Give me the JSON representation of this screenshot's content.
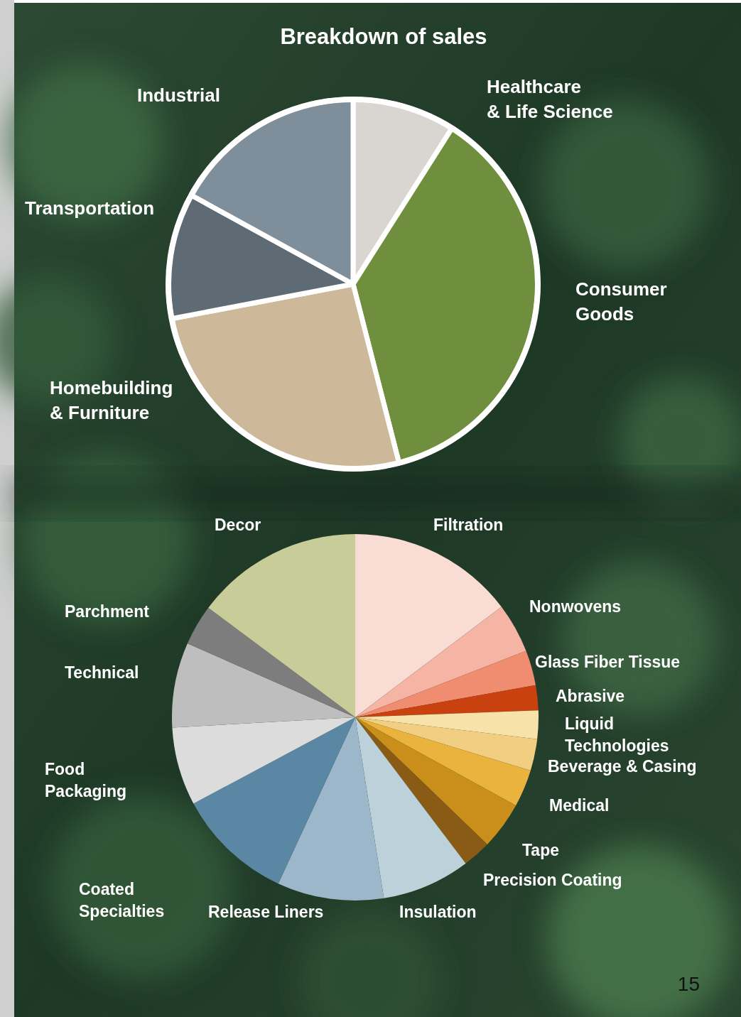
{
  "page": "15",
  "chart_data": [
    {
      "type": "pie",
      "title": "Breakdown of sales",
      "categories": [
        "Healthcare & Life Science",
        "Consumer Goods",
        "Homebuilding & Furniture",
        "Transportation",
        "Industrial"
      ],
      "values": [
        9,
        37,
        26,
        11,
        17
      ],
      "colors": [
        "#d9d6d2",
        "#6f8f3e",
        "#cdb99a",
        "#5e6a74",
        "#7f8e9b"
      ]
    },
    {
      "type": "pie",
      "categories": [
        "Filtration",
        "Nonwovens",
        "Glass Fiber Tissue",
        "Abrasive",
        "Liquid Technologies",
        "Beverage & Casing",
        "Medical",
        "Tape",
        "Precision Coating",
        "Insulation",
        "Release Liners",
        "Coated Specialties",
        "Food Packaging",
        "Technical",
        "Parchment",
        "Decor"
      ],
      "values": [
        14.7,
        4.4,
        3.1,
        2.2,
        2.5,
        2.8,
        3.3,
        4.2,
        2.5,
        7.8,
        9.4,
        10.3,
        6.9,
        7.5,
        3.6,
        14.8
      ],
      "colors": [
        "#f9ddd5",
        "#f6b5a4",
        "#f08d71",
        "#c8410f",
        "#f7e2aa",
        "#f1ce82",
        "#e9b33d",
        "#c98f1a",
        "#8a5b14",
        "#bdd1db",
        "#9bb7c9",
        "#5a87a3",
        "#dcdcdc",
        "#bebebe",
        "#7d7d7d",
        "#c8cc98"
      ]
    }
  ]
}
